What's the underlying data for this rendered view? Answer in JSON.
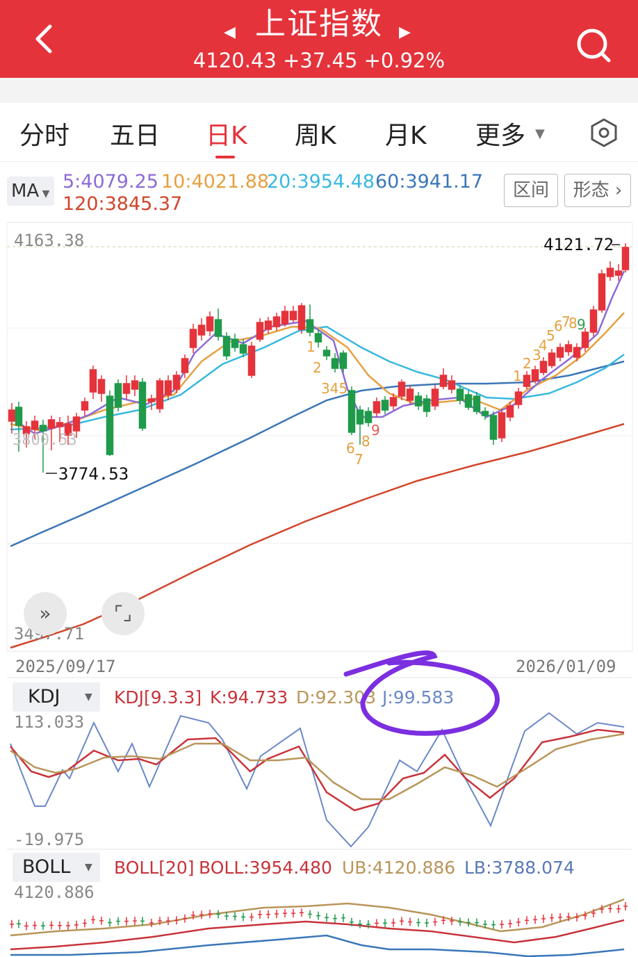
{
  "header": {
    "title": "上证指数",
    "price": "4120.43",
    "change": "+37.45",
    "change_pct": "+0.92%",
    "back_icon": "chevron-left-icon",
    "search_icon": "search-icon",
    "prev_icon": "triangle-left-icon",
    "next_icon": "triangle-right-icon",
    "color": "#e5333b"
  },
  "tabs": [
    {
      "label": "分时"
    },
    {
      "label": "五日"
    },
    {
      "label": "日K"
    },
    {
      "label": "周K"
    },
    {
      "label": "月K"
    },
    {
      "label": "更多"
    }
  ],
  "active_tab": "日K",
  "ma": {
    "selector_label": "MA",
    "ma5": "5:4079.25",
    "ma10": "10:4021.88",
    "ma20": "20:3954.48",
    "ma60": "60:3941.17",
    "ma120": "120:3845.37",
    "colors": {
      "ma5": "#8c6bd6",
      "ma10": "#e5a040",
      "ma20": "#38b8e0",
      "ma60": "#3a76b8",
      "ma120": "#d2452a"
    }
  },
  "buttons": {
    "interval": "区间",
    "pattern": "形态"
  },
  "main_chart": {
    "high_label": "4163.38",
    "low_label": "3497.71",
    "max_mark": "4121.72",
    "min_mark": "3774.53",
    "ghost_label": "3800.53",
    "date_start": "2025/09/17",
    "date_end": "2026/01/09",
    "expand_icon": "double-chevron-right-icon",
    "fullscreen_icon": "fullscreen-icon"
  },
  "kdj": {
    "selector_label": "KDJ",
    "params": "KDJ[9.3.3]",
    "k": "K:94.733",
    "d": "D:92.303",
    "j": "J:99.583",
    "top": "113.033",
    "bottom": "-19.975",
    "colors": {
      "k": "#c8333a",
      "d": "#b8955a",
      "j": "#6a88c8"
    }
  },
  "boll": {
    "selector_label": "BOLL",
    "params": "BOLL[20]",
    "mid": "BOLL:3954.480",
    "ub": "UB:4120.886",
    "lb": "LB:3788.074",
    "top": "4120.886"
  },
  "annotation": {
    "color": "#7b2fe0"
  }
}
